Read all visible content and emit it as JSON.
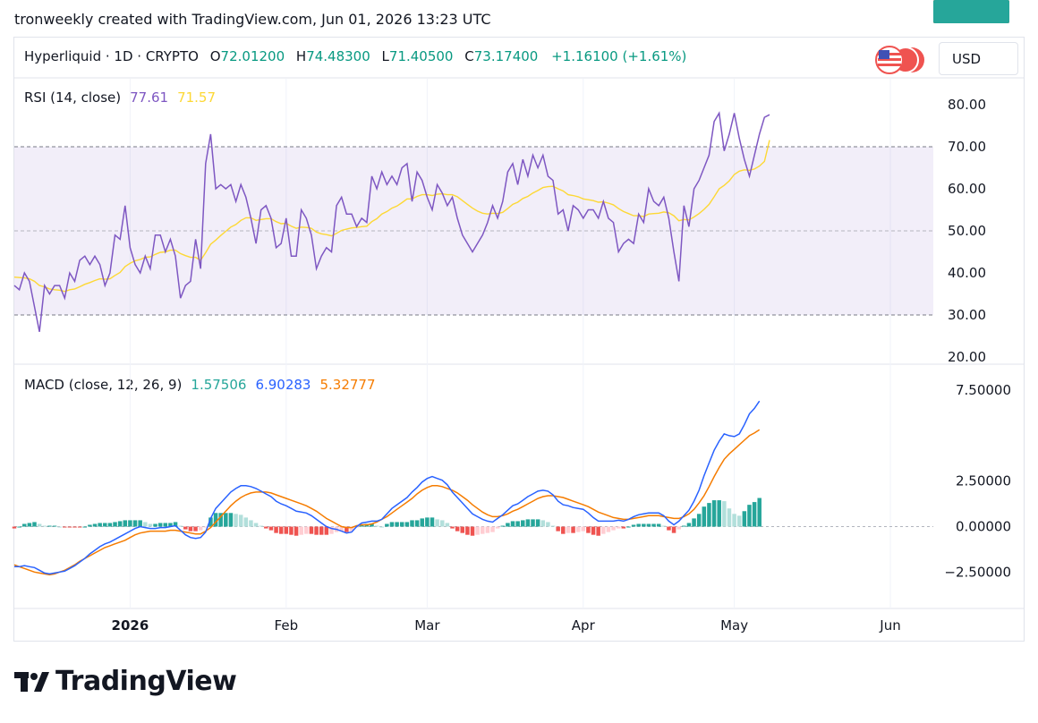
{
  "caption": "tronweekly created with TradingView.com, Jun 01, 2026 13:23 UTC",
  "symbol": {
    "title": "Hyperliquid · 1D · CRYPTO",
    "open_key": "O",
    "open": "72.01200",
    "high_key": "H",
    "high": "74.48300",
    "low_key": "L",
    "low": "71.40500",
    "close_key": "C",
    "close": "73.17400",
    "change": "+1.16100 (+1.61%)"
  },
  "currency": "USD",
  "colors": {
    "rsi_line": "#7e57c2",
    "rsi_ma": "#fdd835",
    "rsi_band": "#7e57c2",
    "macd_line": "#2962ff",
    "signal_line": "#f57c00",
    "hist_up_strong": "#26a69a",
    "hist_up_weak": "#b2dfdb",
    "hist_down_strong": "#ef5350",
    "hist_down_weak": "#ffcdd2"
  },
  "logo": {
    "text": "TradingView",
    "icon": "tradingview-logo-icon"
  },
  "chart_data": [
    {
      "type": "line",
      "title": "RSI (14, close)",
      "legend_values": [
        "77.61",
        "71.57"
      ],
      "ylim": [
        20,
        80
      ],
      "yticks": [
        "80.00",
        "70.00",
        "60.00",
        "50.00",
        "40.00",
        "30.00",
        "20.00"
      ],
      "band": [
        30,
        70
      ],
      "badges": [
        "77.61",
        "71.57"
      ],
      "series": [
        {
          "name": "RSI",
          "values": [
            37,
            36,
            40,
            38,
            32,
            26,
            37,
            35,
            37,
            37,
            34,
            40,
            38,
            43,
            44,
            42,
            44,
            42,
            37,
            40,
            49,
            48,
            56,
            46,
            42,
            40,
            44,
            41,
            49,
            49,
            45,
            48,
            44,
            34,
            37,
            38,
            48,
            41,
            66,
            73,
            60,
            61,
            60,
            61,
            57,
            61,
            58,
            53,
            47,
            55,
            56,
            53,
            46,
            47,
            53,
            44,
            44,
            55,
            53,
            49,
            41,
            44,
            46,
            45,
            56,
            58,
            54,
            54,
            51,
            53,
            52,
            63,
            60,
            64,
            61,
            63,
            61,
            65,
            66,
            57,
            64,
            62,
            58,
            55,
            61,
            59,
            56,
            58,
            53,
            49,
            47,
            45,
            47,
            49,
            52,
            56,
            53,
            57,
            64,
            66,
            61,
            67,
            63,
            68,
            65,
            68,
            63,
            62,
            54,
            55,
            50,
            56,
            55,
            53,
            55,
            55,
            53,
            57,
            53,
            52,
            45,
            47,
            48,
            47,
            54,
            52,
            60,
            57,
            56,
            58,
            53,
            45,
            38,
            56,
            51,
            60,
            62,
            65,
            68,
            76,
            78,
            69,
            73,
            78,
            72,
            67,
            63,
            68,
            73,
            77,
            77.61
          ]
        },
        {
          "name": "RSI MA",
          "values": [
            39.0,
            38.9,
            38.8,
            38.6,
            38.0,
            37.0,
            36.7,
            36.2,
            36.0,
            35.9,
            35.6,
            36.0,
            36.2,
            36.7,
            37.3,
            37.7,
            38.2,
            38.6,
            38.5,
            38.6,
            39.4,
            40.1,
            41.5,
            42.3,
            42.9,
            43.2,
            43.7,
            43.8,
            44.4,
            44.9,
            45.0,
            45.4,
            45.4,
            44.6,
            44.1,
            43.7,
            43.7,
            43.0,
            44.8,
            46.8,
            47.8,
            48.9,
            49.9,
            50.9,
            51.5,
            52.5,
            53.1,
            53.1,
            52.5,
            52.7,
            52.9,
            52.9,
            52.2,
            51.7,
            51.8,
            51.1,
            50.6,
            50.9,
            50.8,
            50.6,
            49.7,
            49.3,
            49.1,
            48.8,
            49.4,
            50.1,
            50.4,
            50.7,
            50.8,
            51.0,
            51.1,
            52.2,
            52.9,
            54.0,
            54.6,
            55.4,
            55.9,
            56.7,
            57.6,
            57.6,
            58.2,
            58.6,
            58.6,
            58.4,
            58.7,
            58.8,
            58.6,
            58.6,
            58.1,
            57.2,
            56.3,
            55.4,
            54.7,
            54.2,
            54.0,
            54.2,
            54.1,
            54.4,
            55.3,
            56.3,
            56.8,
            57.7,
            58.2,
            59.0,
            59.6,
            60.3,
            60.5,
            60.6,
            60.0,
            59.5,
            58.6,
            58.4,
            58.1,
            57.6,
            57.4,
            57.2,
            56.8,
            56.9,
            56.6,
            56.2,
            55.3,
            54.6,
            54.1,
            53.6,
            53.6,
            53.4,
            54.0,
            54.1,
            54.2,
            54.5,
            54.3,
            53.6,
            52.4,
            52.7,
            52.6,
            53.3,
            54.1,
            55.1,
            56.3,
            58.1,
            60.0,
            60.8,
            61.9,
            63.4,
            64.2,
            64.5,
            64.4,
            64.7,
            65.4,
            66.5,
            71.57
          ]
        }
      ]
    },
    {
      "type": "bar+line",
      "title": "MACD (close, 12, 26, 9)",
      "legend_values": [
        "1.57506",
        "6.90283",
        "5.32777"
      ],
      "ylim": [
        -4.5,
        7.8
      ],
      "yticks": [
        "7.50000",
        "2.50000",
        "0.00000",
        "−2.50000"
      ],
      "badges": [
        "6.90283",
        "5.32777",
        "1.57506"
      ],
      "series": [
        {
          "name": "MACD",
          "values": [
            -2.2,
            -2.2,
            -2.15,
            -2.2,
            -2.25,
            -2.4,
            -2.55,
            -2.6,
            -2.55,
            -2.5,
            -2.45,
            -2.3,
            -2.15,
            -1.95,
            -1.75,
            -1.5,
            -1.3,
            -1.1,
            -0.95,
            -0.85,
            -0.7,
            -0.55,
            -0.4,
            -0.25,
            -0.1,
            0.0,
            -0.05,
            -0.1,
            -0.1,
            -0.05,
            -0.05,
            0.0,
            0.05,
            -0.2,
            -0.45,
            -0.6,
            -0.65,
            -0.6,
            -0.3,
            0.45,
            1.0,
            1.3,
            1.6,
            1.9,
            2.1,
            2.25,
            2.25,
            2.2,
            2.1,
            1.95,
            1.8,
            1.65,
            1.4,
            1.25,
            1.15,
            1.0,
            0.85,
            0.8,
            0.75,
            0.6,
            0.4,
            0.2,
            0.0,
            -0.1,
            -0.15,
            -0.25,
            -0.35,
            -0.3,
            0.0,
            0.2,
            0.25,
            0.3,
            0.3,
            0.4,
            0.7,
            1.0,
            1.2,
            1.4,
            1.6,
            1.9,
            2.15,
            2.45,
            2.65,
            2.75,
            2.65,
            2.55,
            2.3,
            1.9,
            1.6,
            1.3,
            1.0,
            0.7,
            0.55,
            0.4,
            0.3,
            0.25,
            0.45,
            0.65,
            0.9,
            1.15,
            1.25,
            1.45,
            1.65,
            1.8,
            1.95,
            2.0,
            1.95,
            1.75,
            1.4,
            1.2,
            1.15,
            1.05,
            1.0,
            0.95,
            0.75,
            0.5,
            0.3,
            0.3,
            0.3,
            0.3,
            0.35,
            0.3,
            0.4,
            0.55,
            0.65,
            0.7,
            0.75,
            0.75,
            0.75,
            0.6,
            0.3,
            0.1,
            0.3,
            0.6,
            0.9,
            1.4,
            2.0,
            2.8,
            3.5,
            4.2,
            4.7,
            5.1,
            5.0,
            4.95,
            5.1,
            5.6,
            6.2,
            6.5,
            6.90283
          ]
        },
        {
          "name": "Signal",
          "values": [
            -2.1,
            -2.2,
            -2.3,
            -2.4,
            -2.5,
            -2.55,
            -2.6,
            -2.65,
            -2.6,
            -2.5,
            -2.4,
            -2.25,
            -2.1,
            -1.9,
            -1.75,
            -1.6,
            -1.45,
            -1.3,
            -1.15,
            -1.05,
            -0.95,
            -0.85,
            -0.75,
            -0.6,
            -0.45,
            -0.35,
            -0.3,
            -0.25,
            -0.25,
            -0.25,
            -0.25,
            -0.2,
            -0.2,
            -0.25,
            -0.3,
            -0.35,
            -0.4,
            -0.4,
            -0.25,
            -0.05,
            0.25,
            0.55,
            0.85,
            1.15,
            1.4,
            1.6,
            1.75,
            1.85,
            1.9,
            1.9,
            1.9,
            1.85,
            1.75,
            1.65,
            1.55,
            1.45,
            1.35,
            1.25,
            1.15,
            1.0,
            0.85,
            0.65,
            0.45,
            0.3,
            0.15,
            0.0,
            -0.05,
            -0.05,
            0.05,
            0.1,
            0.1,
            0.15,
            0.25,
            0.4,
            0.55,
            0.75,
            0.95,
            1.15,
            1.35,
            1.55,
            1.8,
            2.0,
            2.15,
            2.25,
            2.25,
            2.2,
            2.1,
            2.0,
            1.85,
            1.65,
            1.45,
            1.2,
            1.0,
            0.8,
            0.65,
            0.55,
            0.55,
            0.6,
            0.7,
            0.85,
            0.95,
            1.1,
            1.25,
            1.4,
            1.55,
            1.65,
            1.7,
            1.7,
            1.65,
            1.6,
            1.5,
            1.4,
            1.3,
            1.2,
            1.1,
            0.95,
            0.8,
            0.7,
            0.6,
            0.5,
            0.45,
            0.4,
            0.4,
            0.45,
            0.5,
            0.55,
            0.6,
            0.6,
            0.6,
            0.55,
            0.5,
            0.45,
            0.45,
            0.55,
            0.7,
            0.95,
            1.3,
            1.7,
            2.2,
            2.75,
            3.25,
            3.7,
            4.0,
            4.25,
            4.5,
            4.75,
            5.0,
            5.15,
            5.32777
          ]
        },
        {
          "name": "Histogram",
          "values": [
            -0.1,
            0.0,
            0.15,
            0.2,
            0.25,
            0.15,
            0.05,
            0.05,
            0.05,
            0.0,
            -0.05,
            -0.05,
            -0.05,
            -0.05,
            0.0,
            0.1,
            0.15,
            0.2,
            0.2,
            0.2,
            0.25,
            0.3,
            0.35,
            0.35,
            0.35,
            0.35,
            0.25,
            0.15,
            0.15,
            0.2,
            0.2,
            0.2,
            0.25,
            0.05,
            -0.15,
            -0.25,
            -0.25,
            -0.2,
            -0.05,
            0.5,
            0.75,
            0.75,
            0.75,
            0.75,
            0.7,
            0.65,
            0.5,
            0.35,
            0.2,
            0.05,
            -0.1,
            -0.2,
            -0.35,
            -0.4,
            -0.4,
            -0.45,
            -0.5,
            -0.45,
            -0.4,
            -0.4,
            -0.45,
            -0.45,
            -0.45,
            -0.4,
            -0.3,
            -0.25,
            -0.3,
            -0.25,
            -0.05,
            0.1,
            0.15,
            0.15,
            0.05,
            0.0,
            0.15,
            0.25,
            0.25,
            0.25,
            0.25,
            0.35,
            0.35,
            0.45,
            0.5,
            0.5,
            0.4,
            0.35,
            0.2,
            -0.1,
            -0.25,
            -0.35,
            -0.45,
            -0.5,
            -0.45,
            -0.4,
            -0.35,
            -0.3,
            -0.1,
            0.05,
            0.2,
            0.3,
            0.3,
            0.35,
            0.4,
            0.4,
            0.4,
            0.35,
            0.25,
            0.05,
            -0.25,
            -0.4,
            -0.35,
            -0.35,
            -0.3,
            -0.25,
            -0.35,
            -0.45,
            -0.5,
            -0.4,
            -0.3,
            -0.2,
            -0.1,
            -0.1,
            0.0,
            0.1,
            0.15,
            0.15,
            0.15,
            0.15,
            0.15,
            0.05,
            -0.2,
            -0.35,
            -0.15,
            0.05,
            0.2,
            0.45,
            0.7,
            1.1,
            1.3,
            1.45,
            1.45,
            1.4,
            1.0,
            0.7,
            0.6,
            0.85,
            1.2,
            1.35,
            1.57506
          ]
        }
      ]
    }
  ],
  "x_axis": {
    "ticks": [
      {
        "label": "2026",
        "index": 23
      },
      {
        "label": "Feb",
        "index": 54
      },
      {
        "label": "Mar",
        "index": 82
      },
      {
        "label": "Apr",
        "index": 113
      },
      {
        "label": "May",
        "index": 143
      },
      {
        "label": "Jun",
        "index": 174
      }
    ],
    "total_points": 175
  }
}
